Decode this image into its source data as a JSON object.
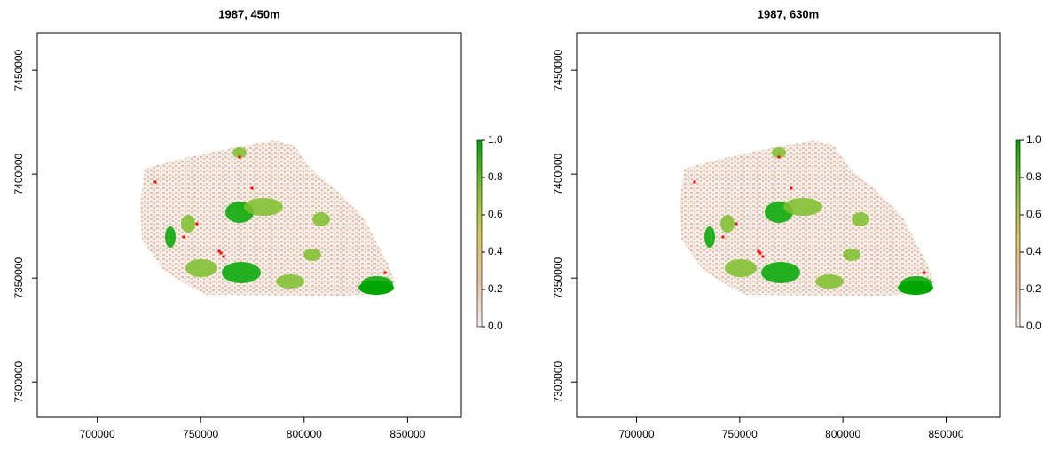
{
  "chart_data": [
    {
      "type": "raster",
      "title": "1987, 450m",
      "xlim": [
        671000,
        876000
      ],
      "ylim": [
        7283000,
        7468000
      ],
      "xticks": [
        700000,
        750000,
        800000,
        850000
      ],
      "yticks": [
        7300000,
        7350000,
        7400000,
        7450000
      ],
      "zlim": [
        0,
        1
      ],
      "zticks": [
        {
          "value": 0,
          "label": "0.0"
        },
        0.2,
        0.4,
        0.6,
        0.8,
        {
          "value": 1,
          "label": "1.0"
        }
      ],
      "colors": [
        "#f2eeee",
        "#e8bfa0",
        "#d6c85a",
        "#7cbf2a",
        "#00a600"
      ]
    },
    {
      "type": "raster",
      "title": "1987, 630m",
      "xlim": [
        671000,
        876000
      ],
      "ylim": [
        7283000,
        7468000
      ],
      "xticks": [
        700000,
        750000,
        800000,
        850000
      ],
      "yticks": [
        7300000,
        7350000,
        7400000,
        7450000
      ],
      "zlim": [
        0,
        1
      ],
      "zticks": [
        {
          "value": 0,
          "label": "0.0"
        },
        0.2,
        0.4,
        0.6,
        0.8,
        {
          "value": 1,
          "label": "1.0"
        }
      ],
      "colors": [
        "#f2eeee",
        "#e8bfa0",
        "#d6c85a",
        "#7cbf2a",
        "#00a600"
      ]
    }
  ]
}
